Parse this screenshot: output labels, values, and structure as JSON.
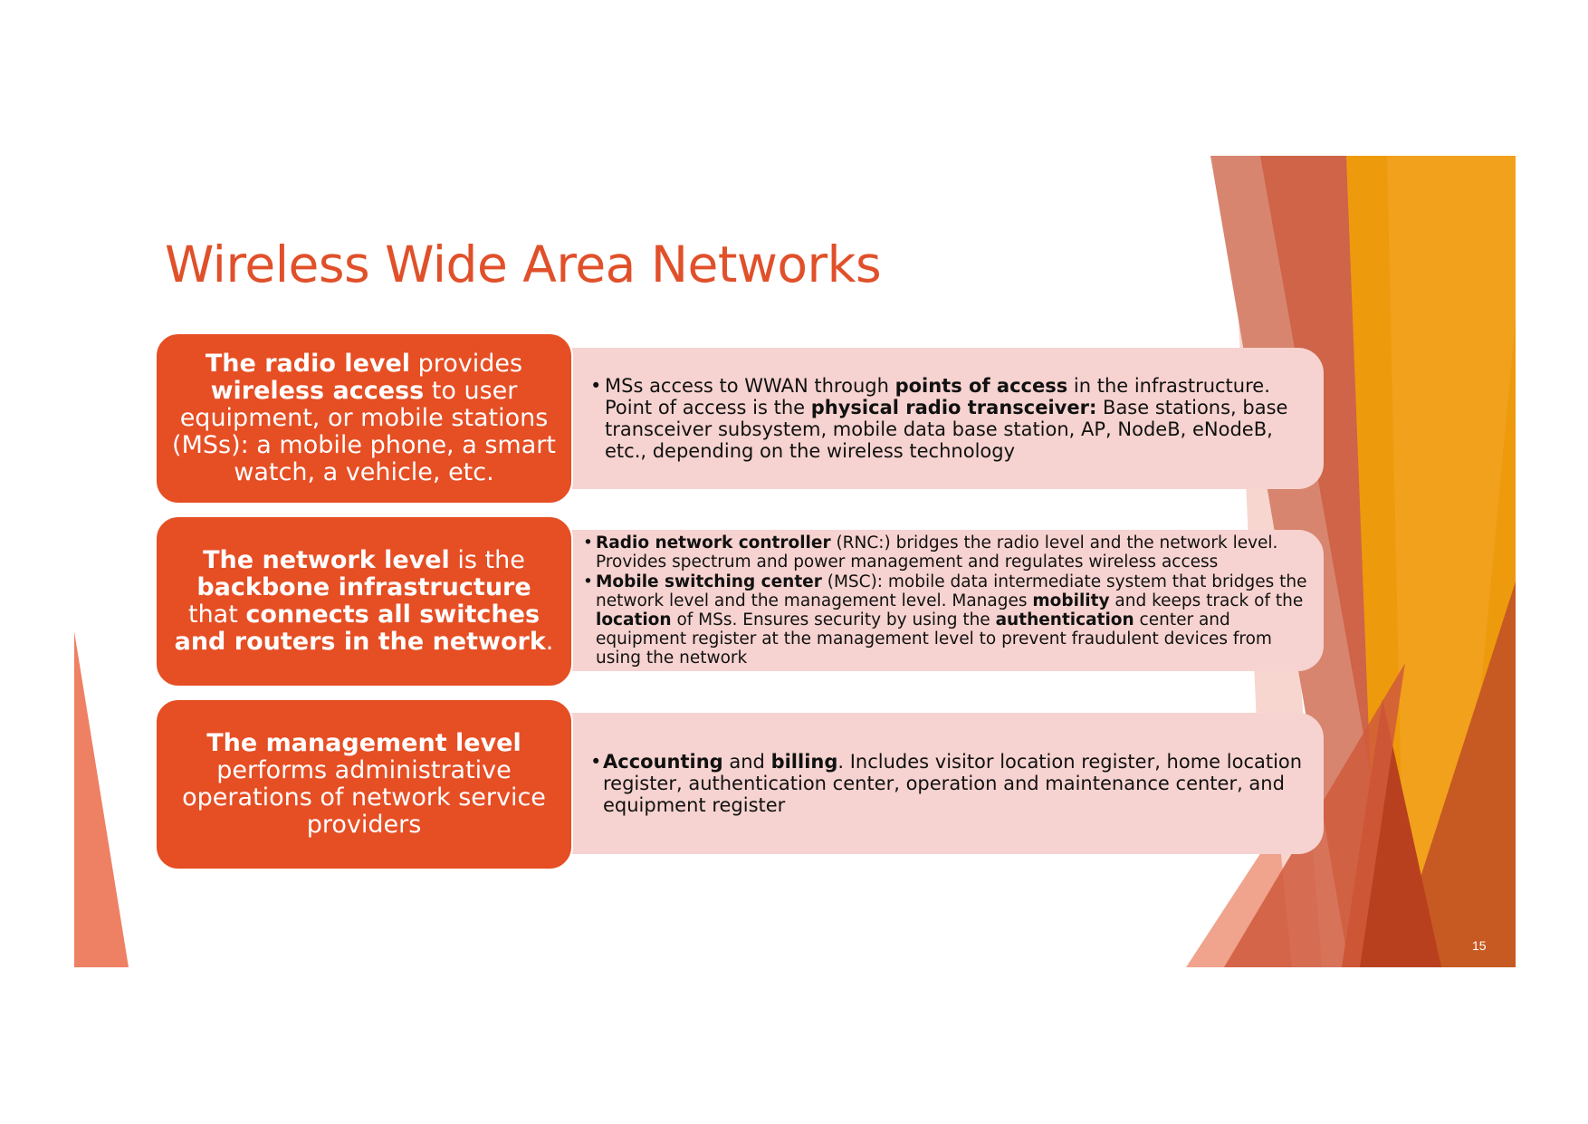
{
  "slide": {
    "title": "Wireless Wide Area Networks",
    "page_number": "15",
    "colors": {
      "title": "#E0502A",
      "level_box": "#E64E24",
      "description_box": "#F6D3D0",
      "deco_orange": "#F29B0B",
      "deco_rust": "#D4643F",
      "deco_salmon": "#EE8064"
    },
    "levels": [
      {
        "box": [
          {
            "t": "The radio level",
            "b": true
          },
          {
            "t": " provides ",
            "b": false
          },
          {
            "t": "wireless access",
            "b": true
          },
          {
            "t": " to user equipment, or mobile stations (MSs): a mobile phone, a smart watch, a vehicle, etc.",
            "b": false
          }
        ],
        "bullets": [
          [
            {
              "t": "MSs access to WWAN through ",
              "b": false
            },
            {
              "t": "points of access",
              "b": true
            },
            {
              "t": " in the infrastructure. Point of access is the ",
              "b": false
            },
            {
              "t": "physical radio transceiver:",
              "b": true
            },
            {
              "t": " Base stations, base transceiver subsystem, mobile data base station, AP, NodeB, eNodeB, etc., depending on the wireless technology",
              "b": false
            }
          ]
        ]
      },
      {
        "box": [
          {
            "t": "The network level",
            "b": true
          },
          {
            "t": " is the ",
            "b": false
          },
          {
            "t": "backbone infrastructure",
            "b": true
          },
          {
            "t": " that ",
            "b": false
          },
          {
            "t": "connects all switches and routers in the network",
            "b": true
          },
          {
            "t": ".",
            "b": false
          }
        ],
        "bullets": [
          [
            {
              "t": "Radio network controller",
              "b": true
            },
            {
              "t": " (RNC:) bridges the radio level and the network level. Provides spectrum and power management  and regulates wireless access",
              "b": false
            }
          ],
          [
            {
              "t": "Mobile switching center",
              "b": true
            },
            {
              "t": " (MSC): mobile data intermediate system that bridges the network level and the management level. Manages ",
              "b": false
            },
            {
              "t": "mobility",
              "b": true
            },
            {
              "t": " and keeps track of the ",
              "b": false
            },
            {
              "t": "location",
              "b": true
            },
            {
              "t": " of MSs. Ensures security by using the ",
              "b": false
            },
            {
              "t": "authentication",
              "b": true
            },
            {
              "t": " center and equipment register at the management level to prevent fraudulent devices from using the network",
              "b": false
            }
          ]
        ]
      },
      {
        "box": [
          {
            "t": "The management level",
            "b": true
          },
          {
            "t": " performs administrative operations of network service providers",
            "b": false
          }
        ],
        "bullets": [
          [
            {
              "t": "Accounting",
              "b": true
            },
            {
              "t": " and ",
              "b": false
            },
            {
              "t": "billing",
              "b": true
            },
            {
              "t": ". Includes visitor location register, home location register, authentication center, operation and maintenance center, and equipment register",
              "b": false
            }
          ]
        ]
      }
    ]
  }
}
